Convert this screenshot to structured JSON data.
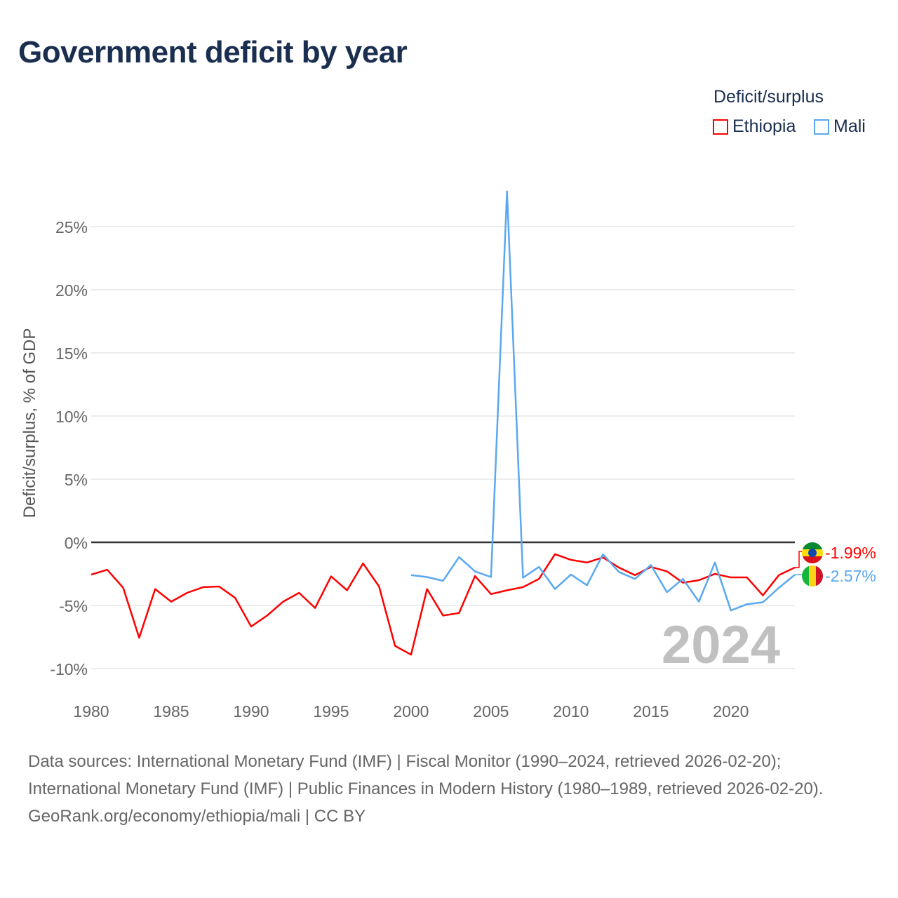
{
  "title": "Government deficit by year",
  "legend": {
    "title": "Deficit/surplus",
    "items": [
      {
        "name": "Ethiopia",
        "color": "#ff0000"
      },
      {
        "name": "Mali",
        "color": "#5aa8ef"
      }
    ]
  },
  "footer": {
    "sources": "Data sources: International Monetary Fund (IMF) | Fiscal Monitor (1990–2024, retrieved 2026-02-20); International Monetary Fund (IMF) | Public Finances in Modern History (1980–1989, retrieved 2026-02-20).",
    "credit": "GeoRank.org/economy/ethiopia/mali | CC BY"
  },
  "chart_data": {
    "type": "line",
    "ylabel": "Deficit/surplus, % of GDP",
    "xlabel": "",
    "xlim": [
      1980,
      2024
    ],
    "ylim": [
      -12,
      28
    ],
    "yticks": [
      -10,
      -5,
      0,
      5,
      10,
      15,
      20,
      25
    ],
    "ytick_labels": [
      "-10%",
      "-5%",
      "0%",
      "5%",
      "10%",
      "15%",
      "20%",
      "25%"
    ],
    "xticks": [
      1980,
      1985,
      1990,
      1995,
      2000,
      2005,
      2010,
      2015,
      2020
    ],
    "year_label": "2024",
    "series": [
      {
        "name": "Ethiopia",
        "color": "#ff0000",
        "end_label": "-1.99%",
        "x": [
          1980,
          1981,
          1982,
          1983,
          1984,
          1985,
          1986,
          1987,
          1988,
          1989,
          1990,
          1991,
          1992,
          1993,
          1994,
          1995,
          1996,
          1997,
          1998,
          1999,
          2000,
          2001,
          2002,
          2003,
          2004,
          2005,
          2006,
          2007,
          2008,
          2009,
          2010,
          2011,
          2012,
          2013,
          2014,
          2015,
          2016,
          2017,
          2018,
          2019,
          2020,
          2021,
          2022,
          2023,
          2024
        ],
        "values": [
          -2.56,
          -2.17,
          -3.6,
          -7.56,
          -3.7,
          -4.7,
          -4.0,
          -3.55,
          -3.5,
          -4.4,
          -6.67,
          -5.8,
          -4.7,
          -4.0,
          -5.2,
          -2.7,
          -3.8,
          -1.67,
          -3.5,
          -8.2,
          -8.9,
          -3.7,
          -5.8,
          -5.6,
          -2.67,
          -4.1,
          -3.8,
          -3.55,
          -2.9,
          -0.94,
          -1.39,
          -1.6,
          -1.2,
          -2.0,
          -2.6,
          -1.95,
          -2.3,
          -3.2,
          -3.0,
          -2.5,
          -2.78,
          -2.78,
          -4.2,
          -2.6,
          -1.99
        ]
      },
      {
        "name": "Mali",
        "color": "#5aa8ef",
        "end_label": "-2.57%",
        "x": [
          2000,
          2001,
          2002,
          2003,
          2004,
          2005,
          2006,
          2007,
          2008,
          2009,
          2010,
          2011,
          2012,
          2013,
          2014,
          2015,
          2016,
          2017,
          2018,
          2019,
          2020,
          2021,
          2022,
          2023,
          2024
        ],
        "values": [
          -2.6,
          -2.75,
          -3.05,
          -1.17,
          -2.3,
          -2.75,
          27.8,
          -2.8,
          -1.95,
          -3.7,
          -2.55,
          -3.4,
          -0.95,
          -2.35,
          -2.9,
          -1.8,
          -3.95,
          -2.9,
          -4.7,
          -1.6,
          -5.4,
          -4.9,
          -4.75,
          -3.6,
          -2.57
        ]
      }
    ]
  }
}
